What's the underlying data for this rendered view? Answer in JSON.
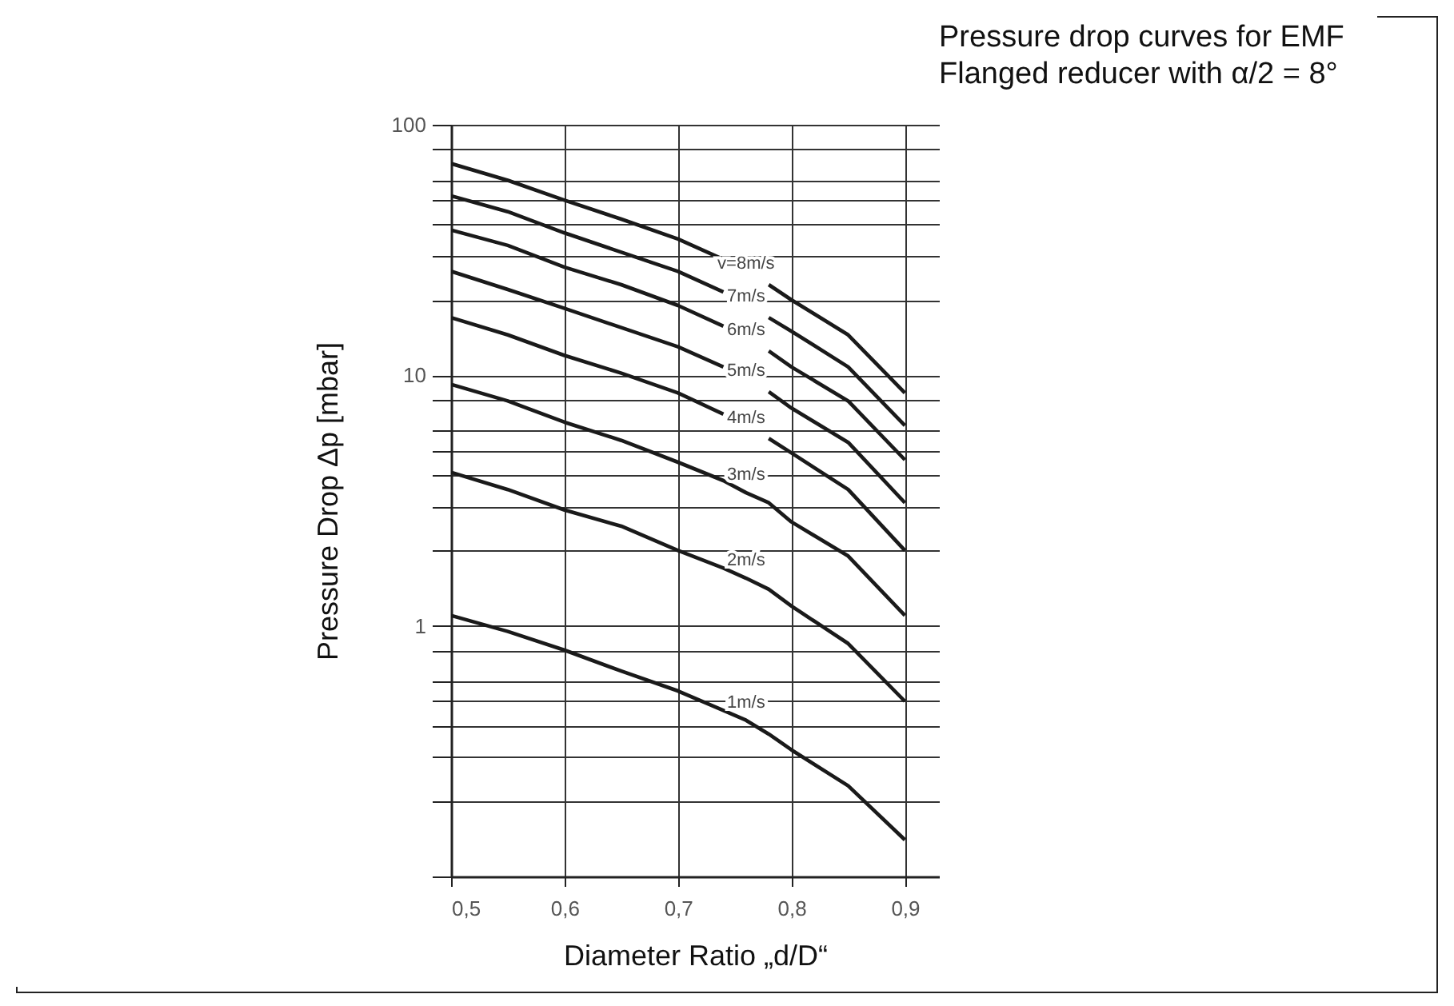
{
  "chart_data": {
    "type": "line",
    "title": "Pressure drop curves for EMF",
    "subtitle": "Flanged reducer with α/2 = 8°",
    "xlabel": "Diameter Ratio „d/D“",
    "ylabel": "Pressure Drop Δp [mbar]",
    "x": [
      0.5,
      0.55,
      0.6,
      0.65,
      0.7,
      0.74,
      0.76,
      0.78,
      0.8,
      0.85,
      0.9
    ],
    "series": [
      {
        "name": "v=8m/s",
        "color": "#1a1a1a",
        "values": [
          70,
          60,
          50,
          42,
          35,
          29,
          null,
          23,
          20,
          14.5,
          8.5
        ]
      },
      {
        "name": "7m/s",
        "color": "#1a1a1a",
        "values": [
          52,
          45,
          37,
          31,
          26,
          21.5,
          null,
          17,
          15,
          10.8,
          6.3
        ]
      },
      {
        "name": "6m/s",
        "color": "#1a1a1a",
        "values": [
          38,
          33,
          27,
          23,
          19,
          15.7,
          null,
          12.5,
          10.8,
          7.9,
          4.6
        ]
      },
      {
        "name": "5m/s",
        "color": "#1a1a1a",
        "values": [
          26,
          22,
          18.5,
          15.5,
          13,
          10.8,
          null,
          8.6,
          7.4,
          5.4,
          3.1
        ]
      },
      {
        "name": "4m/s",
        "color": "#1a1a1a",
        "values": [
          17,
          14.5,
          12,
          10.2,
          8.5,
          7,
          null,
          5.6,
          4.9,
          3.5,
          2.0
        ]
      },
      {
        "name": "3m/s",
        "color": "#1a1a1a",
        "values": [
          9.2,
          7.9,
          6.5,
          5.5,
          4.5,
          3.8,
          3.4,
          3.1,
          2.6,
          1.9,
          1.1
        ]
      },
      {
        "name": "2m/s",
        "color": "#1a1a1a",
        "values": [
          4.1,
          3.5,
          2.9,
          2.5,
          2.0,
          1.7,
          1.55,
          1.4,
          1.2,
          0.85,
          0.5
        ]
      },
      {
        "name": "1m/s",
        "color": "#1a1a1a",
        "values": [
          1.1,
          0.95,
          0.8,
          0.66,
          0.55,
          0.46,
          0.42,
          0.37,
          0.32,
          0.23,
          0.14
        ]
      }
    ],
    "log": "y",
    "xlim": [
      0.5,
      0.93
    ],
    "ylim": [
      0.1,
      100
    ],
    "xticks": [
      {
        "value": 0.5,
        "label": "0,5"
      },
      {
        "value": 0.6,
        "label": "0,6"
      },
      {
        "value": 0.7,
        "label": "0,7"
      },
      {
        "value": 0.8,
        "label": "0,8"
      },
      {
        "value": 0.9,
        "label": "0,9"
      }
    ],
    "yticks": [
      {
        "value": 0.1,
        "label": null
      },
      {
        "value": 0.2,
        "label": null
      },
      {
        "value": 0.3,
        "label": null
      },
      {
        "value": 0.4,
        "label": null
      },
      {
        "value": 0.5,
        "label": null
      },
      {
        "value": 0.6,
        "label": null
      },
      {
        "value": 0.8,
        "label": null
      },
      1,
      {
        "value": 2,
        "label": null
      },
      {
        "value": 3,
        "label": null
      },
      {
        "value": 4,
        "label": null
      },
      {
        "value": 5,
        "label": null
      },
      {
        "value": 6,
        "label": null
      },
      {
        "value": 8,
        "label": null
      },
      10,
      {
        "value": 20,
        "label": null
      },
      {
        "value": 30,
        "label": null
      },
      {
        "value": 40,
        "label": null
      },
      {
        "value": 50,
        "label": null
      },
      {
        "value": 60,
        "label": null
      },
      {
        "value": 80,
        "label": null
      },
      100
    ],
    "grid": true,
    "marker": "none",
    "line_style": "solid"
  }
}
